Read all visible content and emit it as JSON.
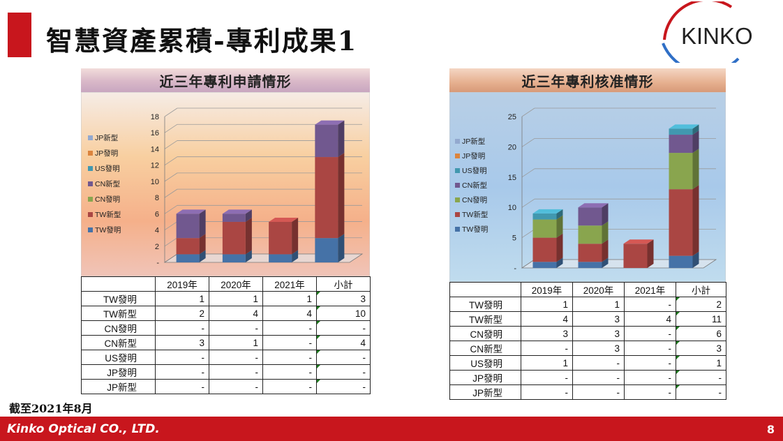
{
  "slide": {
    "title": "智慧資產累積-專利成果1",
    "logo_text": "KINKO",
    "note": "截至2021年8月",
    "footer_company": "Kinko Optical CO., LTD.",
    "page_number": "8",
    "colors": {
      "accent": "#c8161d"
    }
  },
  "left_panel": {
    "title": "近三年專利申請情形",
    "table": {
      "columns": [
        "",
        "2019年",
        "2020年",
        "2021年",
        "小計"
      ],
      "rows": [
        {
          "label": "TW發明",
          "cells": [
            "1",
            "1",
            "1",
            "3"
          ]
        },
        {
          "label": "TW新型",
          "cells": [
            "2",
            "4",
            "4",
            "10"
          ]
        },
        {
          "label": "CN發明",
          "cells": [
            "-",
            "-",
            "-",
            "-"
          ]
        },
        {
          "label": "CN新型",
          "cells": [
            "3",
            "1",
            "-",
            "4"
          ]
        },
        {
          "label": "US發明",
          "cells": [
            "-",
            "-",
            "-",
            "-"
          ]
        },
        {
          "label": "JP發明",
          "cells": [
            "-",
            "-",
            "-",
            "-"
          ]
        },
        {
          "label": "JP新型",
          "cells": [
            "-",
            "-",
            "-",
            "-"
          ]
        }
      ]
    }
  },
  "right_panel": {
    "title": "近三年專利核准情形",
    "table": {
      "columns": [
        "",
        "2019年",
        "2020年",
        "2021年",
        "小計"
      ],
      "rows": [
        {
          "label": "TW發明",
          "cells": [
            "1",
            "1",
            "-",
            "2"
          ]
        },
        {
          "label": "TW新型",
          "cells": [
            "4",
            "3",
            "4",
            "11"
          ]
        },
        {
          "label": "CN發明",
          "cells": [
            "3",
            "3",
            "-",
            "6"
          ]
        },
        {
          "label": "CN新型",
          "cells": [
            "-",
            "3",
            "-",
            "3"
          ]
        },
        {
          "label": "US發明",
          "cells": [
            "1",
            "-",
            "-",
            "1"
          ]
        },
        {
          "label": "JP發明",
          "cells": [
            "-",
            "-",
            "-",
            "-"
          ]
        },
        {
          "label": "JP新型",
          "cells": [
            "-",
            "-",
            "-",
            "-"
          ]
        }
      ]
    }
  },
  "chart_data": [
    {
      "type": "bar",
      "stacked": true,
      "title": "近三年專利申請情形",
      "categories": [
        "2019年",
        "2020年",
        "2021年",
        "小計"
      ],
      "category_labels_shown": false,
      "ylim": [
        0,
        18
      ],
      "yticks": [
        "-",
        "2",
        "4",
        "6",
        "8",
        "10",
        "12",
        "14",
        "16",
        "18"
      ],
      "grid": true,
      "legend": "left",
      "series": [
        {
          "name": "TW發明",
          "color": "#4572a7",
          "values": [
            1,
            1,
            1,
            3
          ]
        },
        {
          "name": "TW新型",
          "color": "#aa4643",
          "values": [
            2,
            4,
            4,
            10
          ]
        },
        {
          "name": "CN發明",
          "color": "#89a54e",
          "values": [
            0,
            0,
            0,
            0
          ]
        },
        {
          "name": "CN新型",
          "color": "#71588f",
          "values": [
            3,
            1,
            0,
            4
          ]
        },
        {
          "name": "US發明",
          "color": "#4198af",
          "values": [
            0,
            0,
            0,
            0
          ]
        },
        {
          "name": "JP發明",
          "color": "#db843d",
          "values": [
            0,
            0,
            0,
            0
          ]
        },
        {
          "name": "JP新型",
          "color": "#93a9cf",
          "values": [
            0,
            0,
            0,
            0
          ]
        }
      ]
    },
    {
      "type": "bar",
      "stacked": true,
      "title": "近三年專利核准情形",
      "categories": [
        "2019年",
        "2020年",
        "2021年",
        "小計"
      ],
      "category_labels_shown": false,
      "ylim": [
        0,
        25
      ],
      "yticks": [
        "-",
        "5",
        "10",
        "15",
        "20",
        "25"
      ],
      "grid": true,
      "legend": "left",
      "series": [
        {
          "name": "TW發明",
          "color": "#4572a7",
          "values": [
            1,
            1,
            0,
            2
          ]
        },
        {
          "name": "TW新型",
          "color": "#aa4643",
          "values": [
            4,
            3,
            4,
            11
          ]
        },
        {
          "name": "CN發明",
          "color": "#89a54e",
          "values": [
            3,
            3,
            0,
            6
          ]
        },
        {
          "name": "CN新型",
          "color": "#71588f",
          "values": [
            0,
            3,
            0,
            3
          ]
        },
        {
          "name": "US發明",
          "color": "#4198af",
          "values": [
            1,
            0,
            0,
            1
          ]
        },
        {
          "name": "JP發明",
          "color": "#db843d",
          "values": [
            0,
            0,
            0,
            0
          ]
        },
        {
          "name": "JP新型",
          "color": "#93a9cf",
          "values": [
            0,
            0,
            0,
            0
          ]
        }
      ]
    }
  ]
}
